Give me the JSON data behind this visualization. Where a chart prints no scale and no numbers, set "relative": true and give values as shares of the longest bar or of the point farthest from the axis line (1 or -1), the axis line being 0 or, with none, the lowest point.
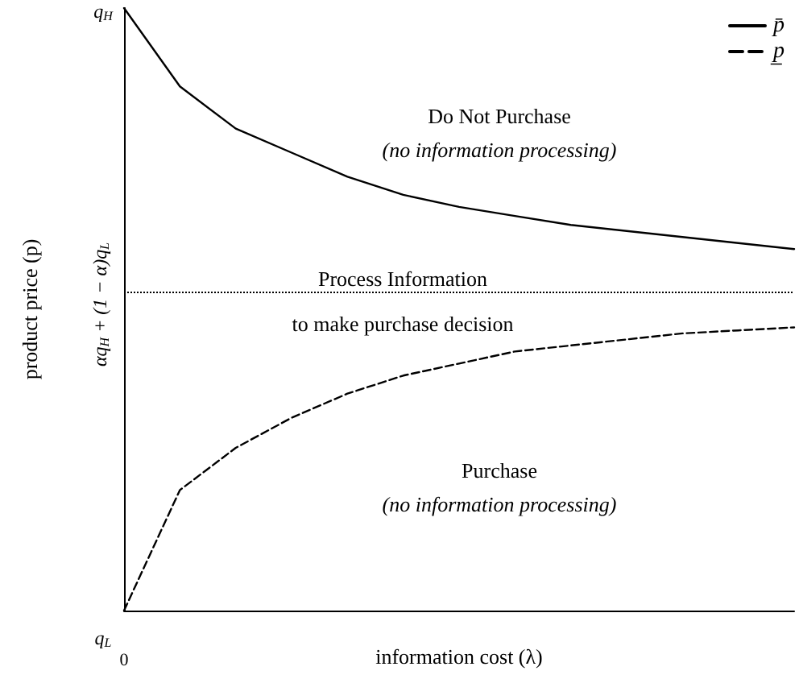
{
  "chart_data": {
    "type": "line",
    "relative": true,
    "xlabel": "information cost (λ)",
    "ylabel": "product price (p)",
    "categories": [
      null,
      null,
      null,
      null,
      null,
      null,
      null,
      null,
      null,
      null,
      null,
      null,
      null
    ],
    "series": [
      {
        "name": "p̄",
        "color": "#000000",
        "line_style": "solid",
        "values": [
          1,
          0.87,
          0.8,
          0.76,
          0.72,
          0.69,
          0.67,
          0.655,
          0.64,
          0.63,
          0.62,
          0.61,
          0.6
        ]
      },
      {
        "name": "p̲",
        "color": "#000000",
        "line_style": "dashed",
        "values": [
          0,
          0.2,
          0.27,
          0.32,
          0.36,
          0.39,
          0.41,
          0.43,
          0.44,
          0.45,
          0.46,
          0.465,
          0.47
        ]
      }
    ],
    "ref_lines": [
      {
        "axis": "y",
        "value": 0.53,
        "line_style": "dotted",
        "color": "#000000"
      }
    ],
    "annotations": [
      "Do Not Purchase",
      "(no information processing)",
      "Process Information",
      "to make purchase decision",
      "Purchase",
      "(no information processing)",
      "0",
      "q$_{H}$",
      "αq$_{H}$ + (1 − α)q$_{L}$",
      "q$_{L}$"
    ],
    "legend": "top right",
    "grid": false,
    "marker": "none"
  }
}
